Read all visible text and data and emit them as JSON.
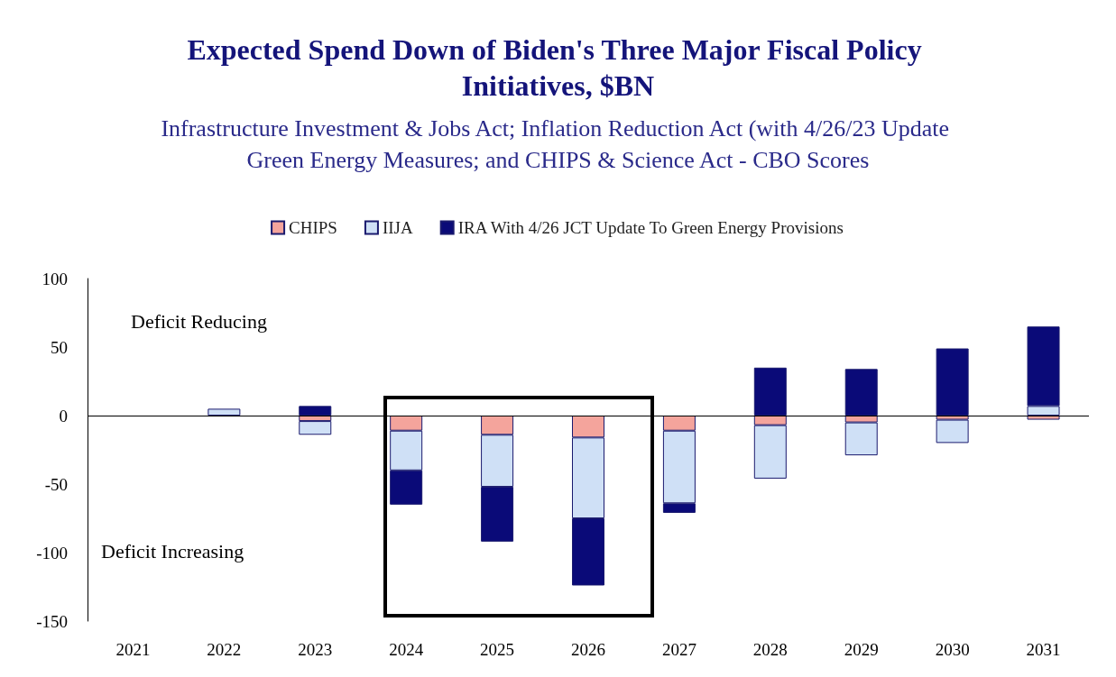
{
  "chart_data": {
    "type": "bar",
    "title": "Expected Spend Down of Biden's Three Major Fiscal Policy Initiatives, $BN",
    "subtitle": "Infrastructure Investment & Jobs Act; Inflation Reduction Act (with 4/26/23 Update Green Energy Measures; and CHIPS & Science Act - CBO Scores",
    "categories": [
      "2021",
      "2022",
      "2023",
      "2024",
      "2025",
      "2026",
      "2027",
      "2028",
      "2029",
      "2030",
      "2031"
    ],
    "stacked": true,
    "series": [
      {
        "name": "CHIPS",
        "color": "#f4a49c",
        "values": [
          null,
          null,
          -4,
          -11,
          -14,
          -16,
          -11,
          -7,
          -5,
          -3,
          -3
        ]
      },
      {
        "name": "IIJA",
        "color": "#cfe0f6",
        "values": [
          null,
          5,
          -10,
          -29,
          -38,
          -59,
          -53,
          -39,
          -24,
          -17,
          7
        ]
      },
      {
        "name": "IRA With 4/26 JCT Update To Green Energy Provisions",
        "color": "#0a0a78",
        "values": [
          null,
          null,
          7,
          -25,
          -40,
          -49,
          -7,
          35,
          34,
          49,
          58
        ]
      }
    ],
    "ylim": [
      -150,
      100
    ],
    "yticks": [
      -150,
      -100,
      -50,
      0,
      50,
      100
    ],
    "grid": false,
    "legend": "top",
    "ref_lines": [
      {
        "axis": "y",
        "value": 0,
        "color": "#000000"
      }
    ],
    "annotations": [
      "Deficit Reducing",
      "Deficit Increasing"
    ]
  }
}
